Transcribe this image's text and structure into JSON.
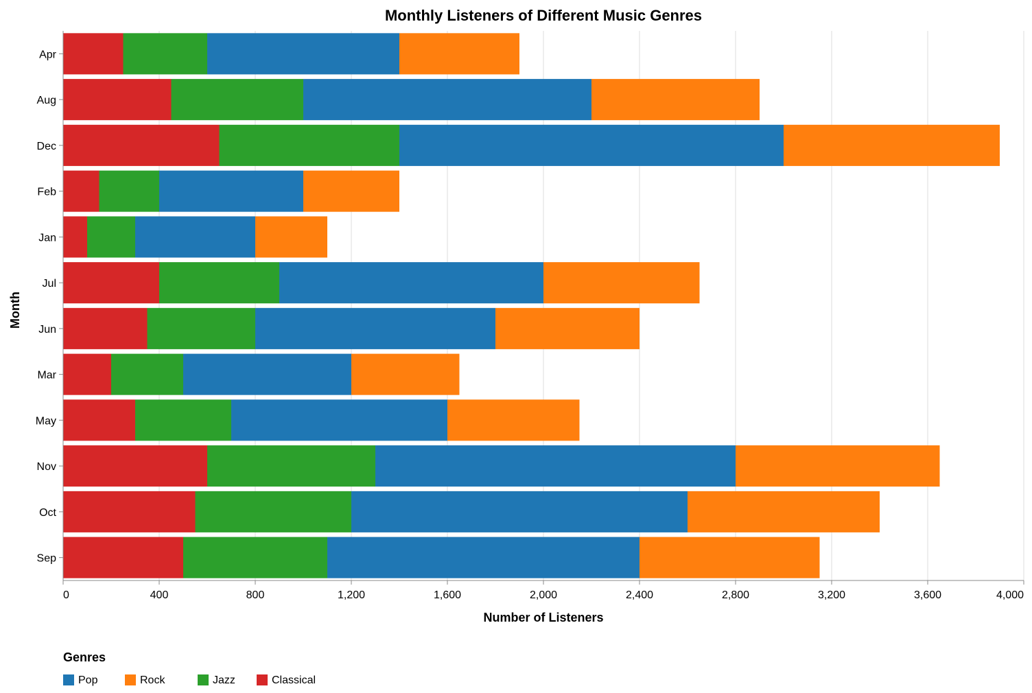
{
  "chart_data": {
    "type": "bar",
    "orientation": "horizontal",
    "stacked": true,
    "title": "Monthly Listeners of Different Music Genres",
    "xlabel": "Number of Listeners",
    "ylabel": "Month",
    "xlim": [
      0,
      4000
    ],
    "x_ticks": [
      0,
      400,
      800,
      1200,
      1600,
      2000,
      2400,
      2800,
      3200,
      3600,
      4000
    ],
    "x_tick_labels": [
      "0",
      "400",
      "800",
      "1,200",
      "1,600",
      "2,000",
      "2,400",
      "2,800",
      "3,200",
      "3,600",
      "4,000"
    ],
    "grid": true,
    "categories": [
      "Apr",
      "Aug",
      "Dec",
      "Feb",
      "Jan",
      "Jul",
      "Jun",
      "Mar",
      "May",
      "Nov",
      "Oct",
      "Sep"
    ],
    "stack_order": [
      "Classical",
      "Jazz",
      "Pop",
      "Rock"
    ],
    "series": [
      {
        "name": "Pop",
        "color": "#1f77b4",
        "values": [
          800,
          1200,
          1600,
          600,
          500,
          1100,
          1000,
          700,
          900,
          1500,
          1400,
          1300
        ]
      },
      {
        "name": "Rock",
        "color": "#ff7f0e",
        "values": [
          500,
          700,
          900,
          400,
          300,
          650,
          600,
          450,
          550,
          850,
          800,
          750
        ]
      },
      {
        "name": "Jazz",
        "color": "#2ca02c",
        "values": [
          350,
          550,
          750,
          250,
          200,
          500,
          450,
          300,
          400,
          700,
          650,
          600
        ]
      },
      {
        "name": "Classical",
        "color": "#d62728",
        "values": [
          250,
          450,
          650,
          150,
          100,
          400,
          350,
          200,
          300,
          600,
          550,
          500
        ]
      }
    ],
    "legend": {
      "title": "Genres",
      "position": "bottom-left",
      "items": [
        "Pop",
        "Rock",
        "Jazz",
        "Classical"
      ]
    }
  }
}
